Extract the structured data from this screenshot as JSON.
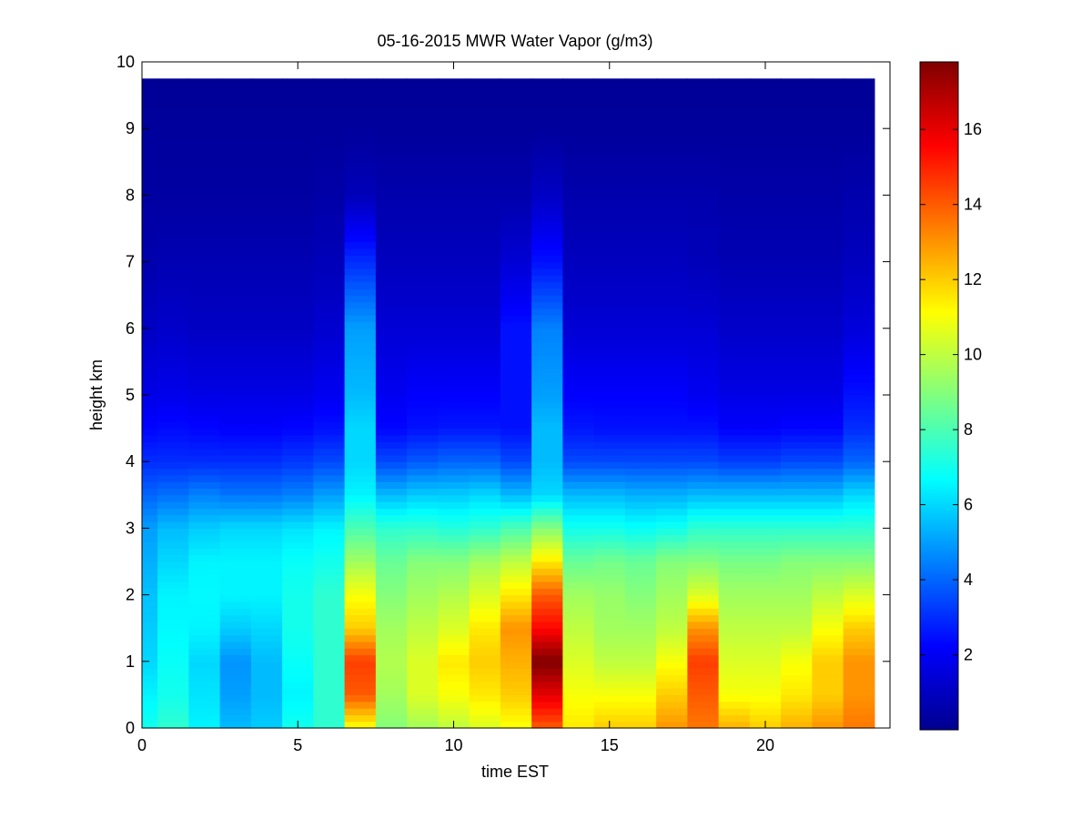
{
  "chart_data": {
    "type": "heatmap",
    "title": "05-16-2015 MWR Water Vapor (g/m3)",
    "xlabel": "time EST",
    "ylabel": "height km",
    "xlim": [
      0,
      24
    ],
    "ylim": [
      0,
      10
    ],
    "x_ticks": [
      "0",
      "5",
      "10",
      "15",
      "20"
    ],
    "y_ticks": [
      "0",
      "1",
      "2",
      "3",
      "4",
      "5",
      "6",
      "7",
      "8",
      "9",
      "10"
    ],
    "colorbar": {
      "colormap": "jet",
      "min": 0,
      "max": 17.8,
      "ticks": [
        "2",
        "4",
        "6",
        "8",
        "10",
        "12",
        "14",
        "16"
      ]
    },
    "x": [
      0,
      1,
      2,
      3,
      4,
      5,
      6,
      7,
      8,
      9,
      10,
      11,
      12,
      13,
      14,
      15,
      16,
      17,
      18,
      19,
      20,
      21,
      22,
      23
    ],
    "heights_km": [
      0,
      0.5,
      1,
      1.5,
      2,
      2.5,
      3,
      3.5,
      4,
      4.5,
      5,
      6,
      7,
      8,
      9,
      9.75
    ],
    "columns": [
      [
        7,
        6.5,
        6,
        5.8,
        5.6,
        5.3,
        5,
        4,
        3,
        2.3,
        1.8,
        1.2,
        0.8,
        0.6,
        0.5,
        0.4
      ],
      [
        7.5,
        7,
        6.8,
        6.6,
        6.5,
        6,
        5.5,
        4.2,
        3,
        2.4,
        1.9,
        1.3,
        0.9,
        0.6,
        0.5,
        0.4
      ],
      [
        6.5,
        6.2,
        6,
        6.5,
        6.6,
        6.5,
        5.8,
        4.5,
        3,
        2.3,
        1.8,
        1.2,
        0.9,
        0.6,
        0.5,
        0.4
      ],
      [
        5.5,
        5,
        4.8,
        5.8,
        6.5,
        6.5,
        6,
        4.3,
        3,
        2.2,
        1.8,
        1.2,
        0.9,
        0.6,
        0.5,
        0.4
      ],
      [
        5.8,
        5.5,
        5.5,
        6,
        6.5,
        6.5,
        6,
        4.3,
        3,
        2.2,
        1.8,
        1.2,
        0.9,
        0.6,
        0.5,
        0.4
      ],
      [
        7,
        6.5,
        6.8,
        7,
        7,
        6.8,
        6.2,
        4.5,
        3.2,
        2.3,
        1.8,
        1.2,
        0.9,
        0.6,
        0.5,
        0.4
      ],
      [
        7.5,
        7.5,
        7.5,
        7.5,
        7.5,
        7,
        6.5,
        5,
        3.5,
        2.5,
        2,
        1.4,
        1,
        0.7,
        0.5,
        0.4
      ],
      [
        11,
        14,
        14.5,
        12,
        11,
        9.5,
        8,
        6.5,
        6,
        6,
        5.5,
        5,
        3,
        1,
        0.5,
        0.4
      ],
      [
        9,
        9.5,
        9.8,
        9.5,
        9,
        8.5,
        7.5,
        5.5,
        3.5,
        2.3,
        2,
        1.5,
        1.1,
        0.8,
        0.5,
        0.4
      ],
      [
        9.5,
        10.5,
        10.5,
        10,
        9.5,
        9,
        7.5,
        5.8,
        3.8,
        2.5,
        2.2,
        1.5,
        1.1,
        0.8,
        0.5,
        0.4
      ],
      [
        10,
        11,
        11.5,
        10.5,
        9.8,
        9,
        7.3,
        5.8,
        4,
        2.6,
        2.2,
        1.5,
        1.1,
        0.8,
        0.5,
        0.4
      ],
      [
        10.5,
        11.5,
        12,
        11.5,
        10.5,
        9.5,
        7.5,
        6,
        4,
        2.6,
        2.2,
        1.5,
        1.1,
        0.8,
        0.5,
        0.4
      ],
      [
        11,
        12,
        12.5,
        13,
        11.5,
        10,
        8,
        5.5,
        3.5,
        2.5,
        2.5,
        2.5,
        1.5,
        0.8,
        0.5,
        0.4
      ],
      [
        14,
        16,
        17.8,
        15.5,
        14,
        11.5,
        9,
        6,
        5.5,
        5.5,
        5,
        4.5,
        2.5,
        1.2,
        0.5,
        0.4
      ],
      [
        11.5,
        11,
        10.5,
        10,
        9.5,
        8.5,
        7,
        5.5,
        3.5,
        2.6,
        2.2,
        1.5,
        1.1,
        0.8,
        0.5,
        0.4
      ],
      [
        12,
        11,
        10,
        9.5,
        9.3,
        8.7,
        7,
        5.5,
        3.5,
        2.5,
        2.2,
        1.5,
        1.1,
        0.8,
        0.5,
        0.4
      ],
      [
        12,
        11,
        10,
        9.5,
        9,
        8.5,
        6.8,
        5.3,
        3.5,
        2.5,
        2.2,
        1.5,
        1.1,
        0.8,
        0.5,
        0.4
      ],
      [
        13,
        12,
        11,
        10,
        9.5,
        9,
        7,
        5.3,
        3.5,
        2.5,
        2.2,
        1.5,
        1.1,
        0.8,
        0.5,
        0.4
      ],
      [
        13.5,
        14,
        14.5,
        13,
        10.5,
        9,
        7.5,
        5.5,
        3.5,
        2.5,
        2,
        1.5,
        1,
        0.8,
        0.5,
        0.4
      ],
      [
        12.5,
        11,
        10.5,
        10,
        9.5,
        8.8,
        7.5,
        5.5,
        3.3,
        2.2,
        1.8,
        1.3,
        0.9,
        0.7,
        0.5,
        0.4
      ],
      [
        12,
        11,
        10.5,
        10,
        9.5,
        8.8,
        7.5,
        5.5,
        3.3,
        2.2,
        1.8,
        1.3,
        0.9,
        0.7,
        0.5,
        0.4
      ],
      [
        12.5,
        11.5,
        11,
        10,
        9.5,
        9,
        7.5,
        5.5,
        3.5,
        2.3,
        1.8,
        1.3,
        0.9,
        0.7,
        0.5,
        0.4
      ],
      [
        13,
        12,
        12,
        11,
        10,
        9,
        7.5,
        5.5,
        3.5,
        2.3,
        1.8,
        1.3,
        0.9,
        0.7,
        0.5,
        0.4
      ],
      [
        13.5,
        13,
        13,
        12,
        10.5,
        9,
        7.5,
        6,
        4,
        3,
        2.5,
        1.6,
        1.1,
        0.8,
        0.5,
        0.4
      ]
    ]
  }
}
